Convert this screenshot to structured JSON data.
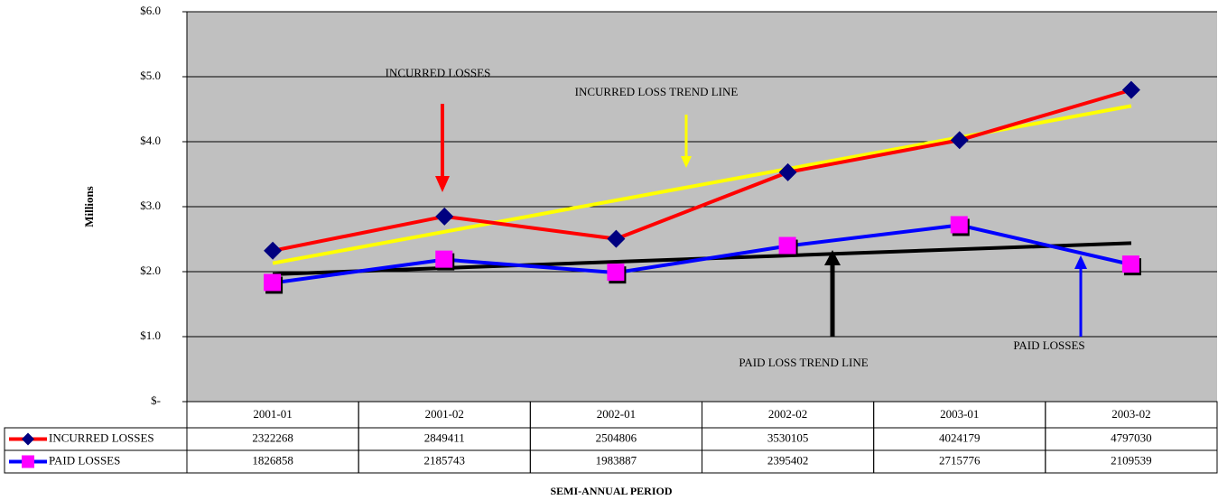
{
  "chart_data": {
    "type": "line",
    "y_label": "Millions",
    "x_label": "SEMI-ANNUAL PERIOD",
    "categories": [
      "2001-01",
      "2001-02",
      "2002-01",
      "2002-02",
      "2003-01",
      "2003-02"
    ],
    "series": [
      {
        "name": "INCURRED LOSSES",
        "color": "#ff0000",
        "marker": "diamond",
        "marker_color": "#000080",
        "values": [
          2322268,
          2849411,
          2504806,
          3530105,
          4024179,
          4797030
        ]
      },
      {
        "name": "PAID LOSSES",
        "color": "#0000ff",
        "marker": "square",
        "marker_color": "#ff00ff",
        "values": [
          1826858,
          2185743,
          1983887,
          2395402,
          2715776,
          2109539
        ]
      }
    ],
    "trend_lines": [
      {
        "color": "#ffff00",
        "start": 2130000,
        "end": 4550000
      },
      {
        "color": "#000000",
        "start": 1960000,
        "end": 2440000
      }
    ],
    "annotations": [
      "INCURRED LOSSES",
      "INCURRED LOSS TREND LINE",
      "PAID LOSS TREND LINE",
      "PAID LOSSES"
    ],
    "ylim": [
      0,
      6000000
    ],
    "yticks": [
      {
        "value": 0,
        "label": "$-"
      },
      {
        "value": 1000000,
        "label": "$1.0"
      },
      {
        "value": 2000000,
        "label": "$2.0"
      },
      {
        "value": 3000000,
        "label": "$3.0"
      },
      {
        "value": 4000000,
        "label": "$4.0"
      },
      {
        "value": 5000000,
        "label": "$5.0"
      },
      {
        "value": 6000000,
        "label": "$6.0"
      }
    ],
    "grid": true,
    "plot_background": "#c0c0c0"
  }
}
